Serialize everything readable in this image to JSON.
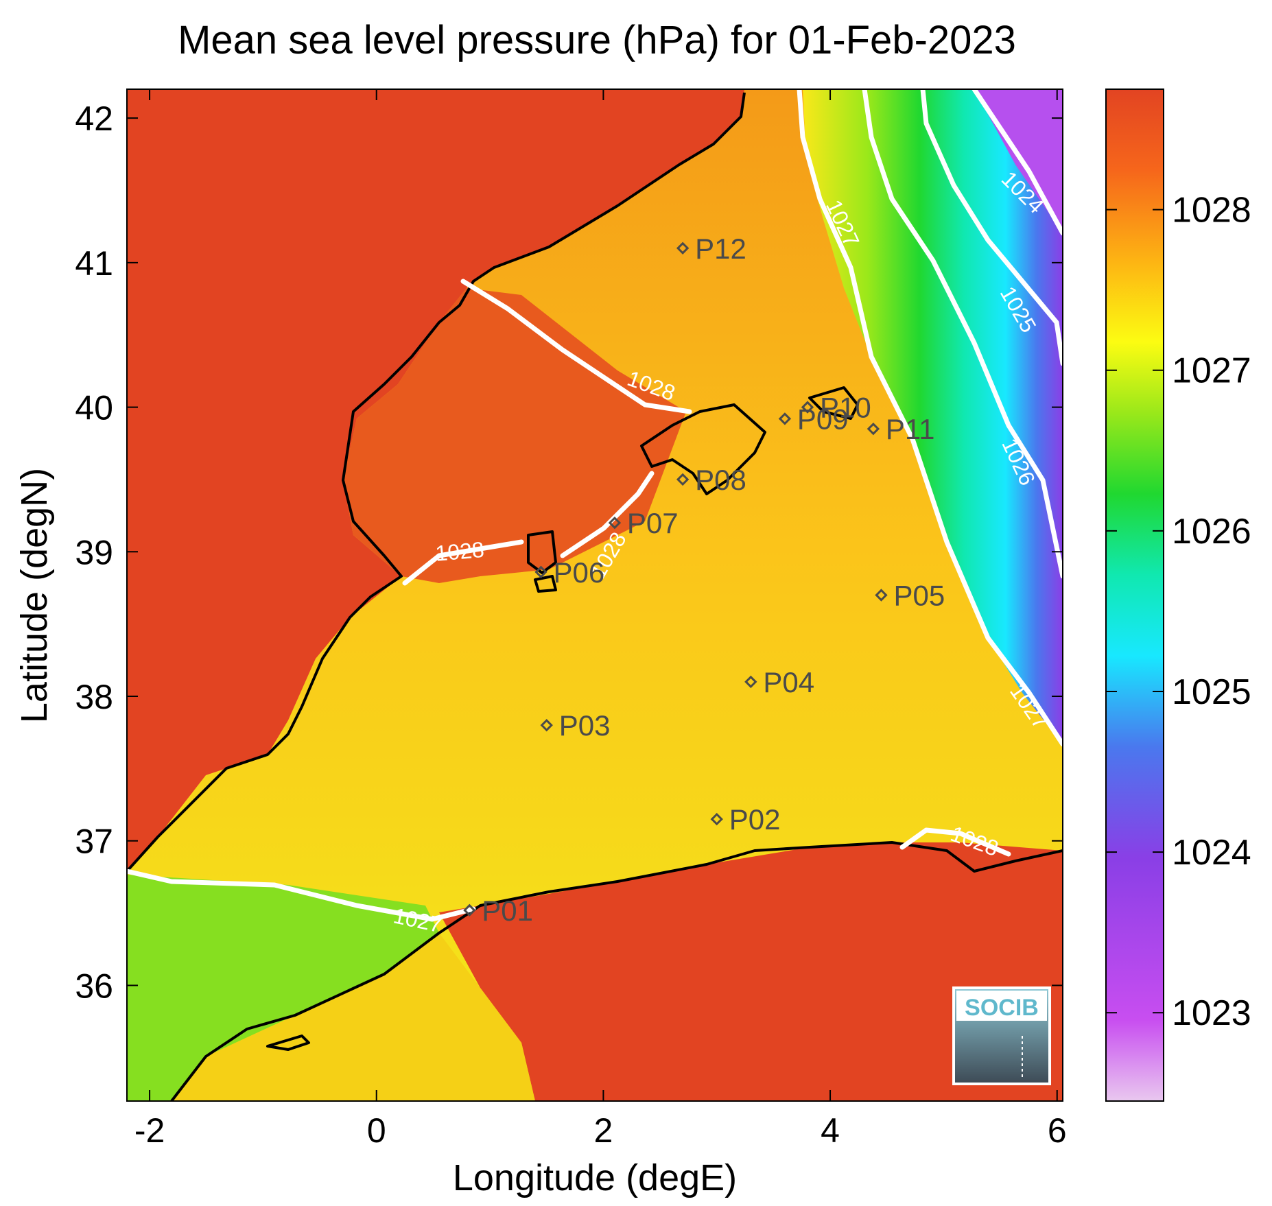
{
  "title": "Mean sea level pressure (hPa) for 01-Feb-2023",
  "x_axis": {
    "label": "Longitude (degE)",
    "ticks": [
      {
        "value": -2,
        "label": "-2"
      },
      {
        "value": 0,
        "label": "0"
      },
      {
        "value": 2,
        "label": "2"
      },
      {
        "value": 4,
        "label": "4"
      },
      {
        "value": 6,
        "label": "6"
      }
    ],
    "range": [
      -2.2,
      6.05
    ]
  },
  "y_axis": {
    "label": "Latitude (degN)",
    "ticks": [
      {
        "value": 36,
        "label": "36"
      },
      {
        "value": 37,
        "label": "37"
      },
      {
        "value": 38,
        "label": "38"
      },
      {
        "value": 39,
        "label": "39"
      },
      {
        "value": 40,
        "label": "40"
      },
      {
        "value": 41,
        "label": "41"
      },
      {
        "value": 42,
        "label": "42"
      }
    ],
    "range": [
      35.2,
      42.2
    ]
  },
  "colorbar": {
    "range": [
      1022.45,
      1028.75
    ],
    "ticks": [
      {
        "value": 1023,
        "label": "1023"
      },
      {
        "value": 1024,
        "label": "1024"
      },
      {
        "value": 1025,
        "label": "1025"
      },
      {
        "value": 1026,
        "label": "1026"
      },
      {
        "value": 1027,
        "label": "1027"
      },
      {
        "value": 1028,
        "label": "1028"
      }
    ],
    "colors": [
      "#e9c8ef",
      "#c84ef0",
      "#8a3fe6",
      "#4a78ee",
      "#18e8ff",
      "#10e8b0",
      "#20d830",
      "#9ae81a",
      "#fcfc12",
      "#fdb413",
      "#f6661b",
      "#e24422"
    ]
  },
  "stations": [
    {
      "id": "P01",
      "lon": 0.82,
      "lat": 36.52
    },
    {
      "id": "P02",
      "lon": 3.0,
      "lat": 37.15
    },
    {
      "id": "P03",
      "lon": 1.5,
      "lat": 37.8
    },
    {
      "id": "P04",
      "lon": 3.3,
      "lat": 38.1
    },
    {
      "id": "P05",
      "lon": 4.45,
      "lat": 38.7
    },
    {
      "id": "P06",
      "lon": 1.45,
      "lat": 38.86
    },
    {
      "id": "P07",
      "lon": 2.1,
      "lat": 39.2
    },
    {
      "id": "P08",
      "lon": 2.7,
      "lat": 39.5
    },
    {
      "id": "P09",
      "lon": 3.6,
      "lat": 39.92
    },
    {
      "id": "P10",
      "lon": 3.8,
      "lat": 40.0
    },
    {
      "id": "P11",
      "lon": 4.38,
      "lat": 39.85
    },
    {
      "id": "P12",
      "lon": 2.7,
      "lat": 41.1
    }
  ],
  "contour_labels": [
    {
      "text": "1027",
      "lon": 4.05,
      "lat": 41.25,
      "angle": 65
    },
    {
      "text": "1024",
      "lon": 5.65,
      "lat": 41.45,
      "angle": 45
    },
    {
      "text": "1025",
      "lon": 5.6,
      "lat": 40.65,
      "angle": 60
    },
    {
      "text": "1026",
      "lon": 5.6,
      "lat": 39.6,
      "angle": 65
    },
    {
      "text": "1027",
      "lon": 5.7,
      "lat": 37.9,
      "angle": 55
    },
    {
      "text": "1028",
      "lon": 2.4,
      "lat": 40.1,
      "angle": 20
    },
    {
      "text": "1028",
      "lon": 0.74,
      "lat": 38.95,
      "angle": -5
    },
    {
      "text": "1028",
      "lon": 2.1,
      "lat": 38.95,
      "angle": -60
    },
    {
      "text": "1028",
      "lon": 5.25,
      "lat": 36.95,
      "angle": 20
    },
    {
      "text": "1027",
      "lon": 0.35,
      "lat": 36.4,
      "angle": 12
    }
  ],
  "logo": {
    "text": "SOCIB"
  }
}
